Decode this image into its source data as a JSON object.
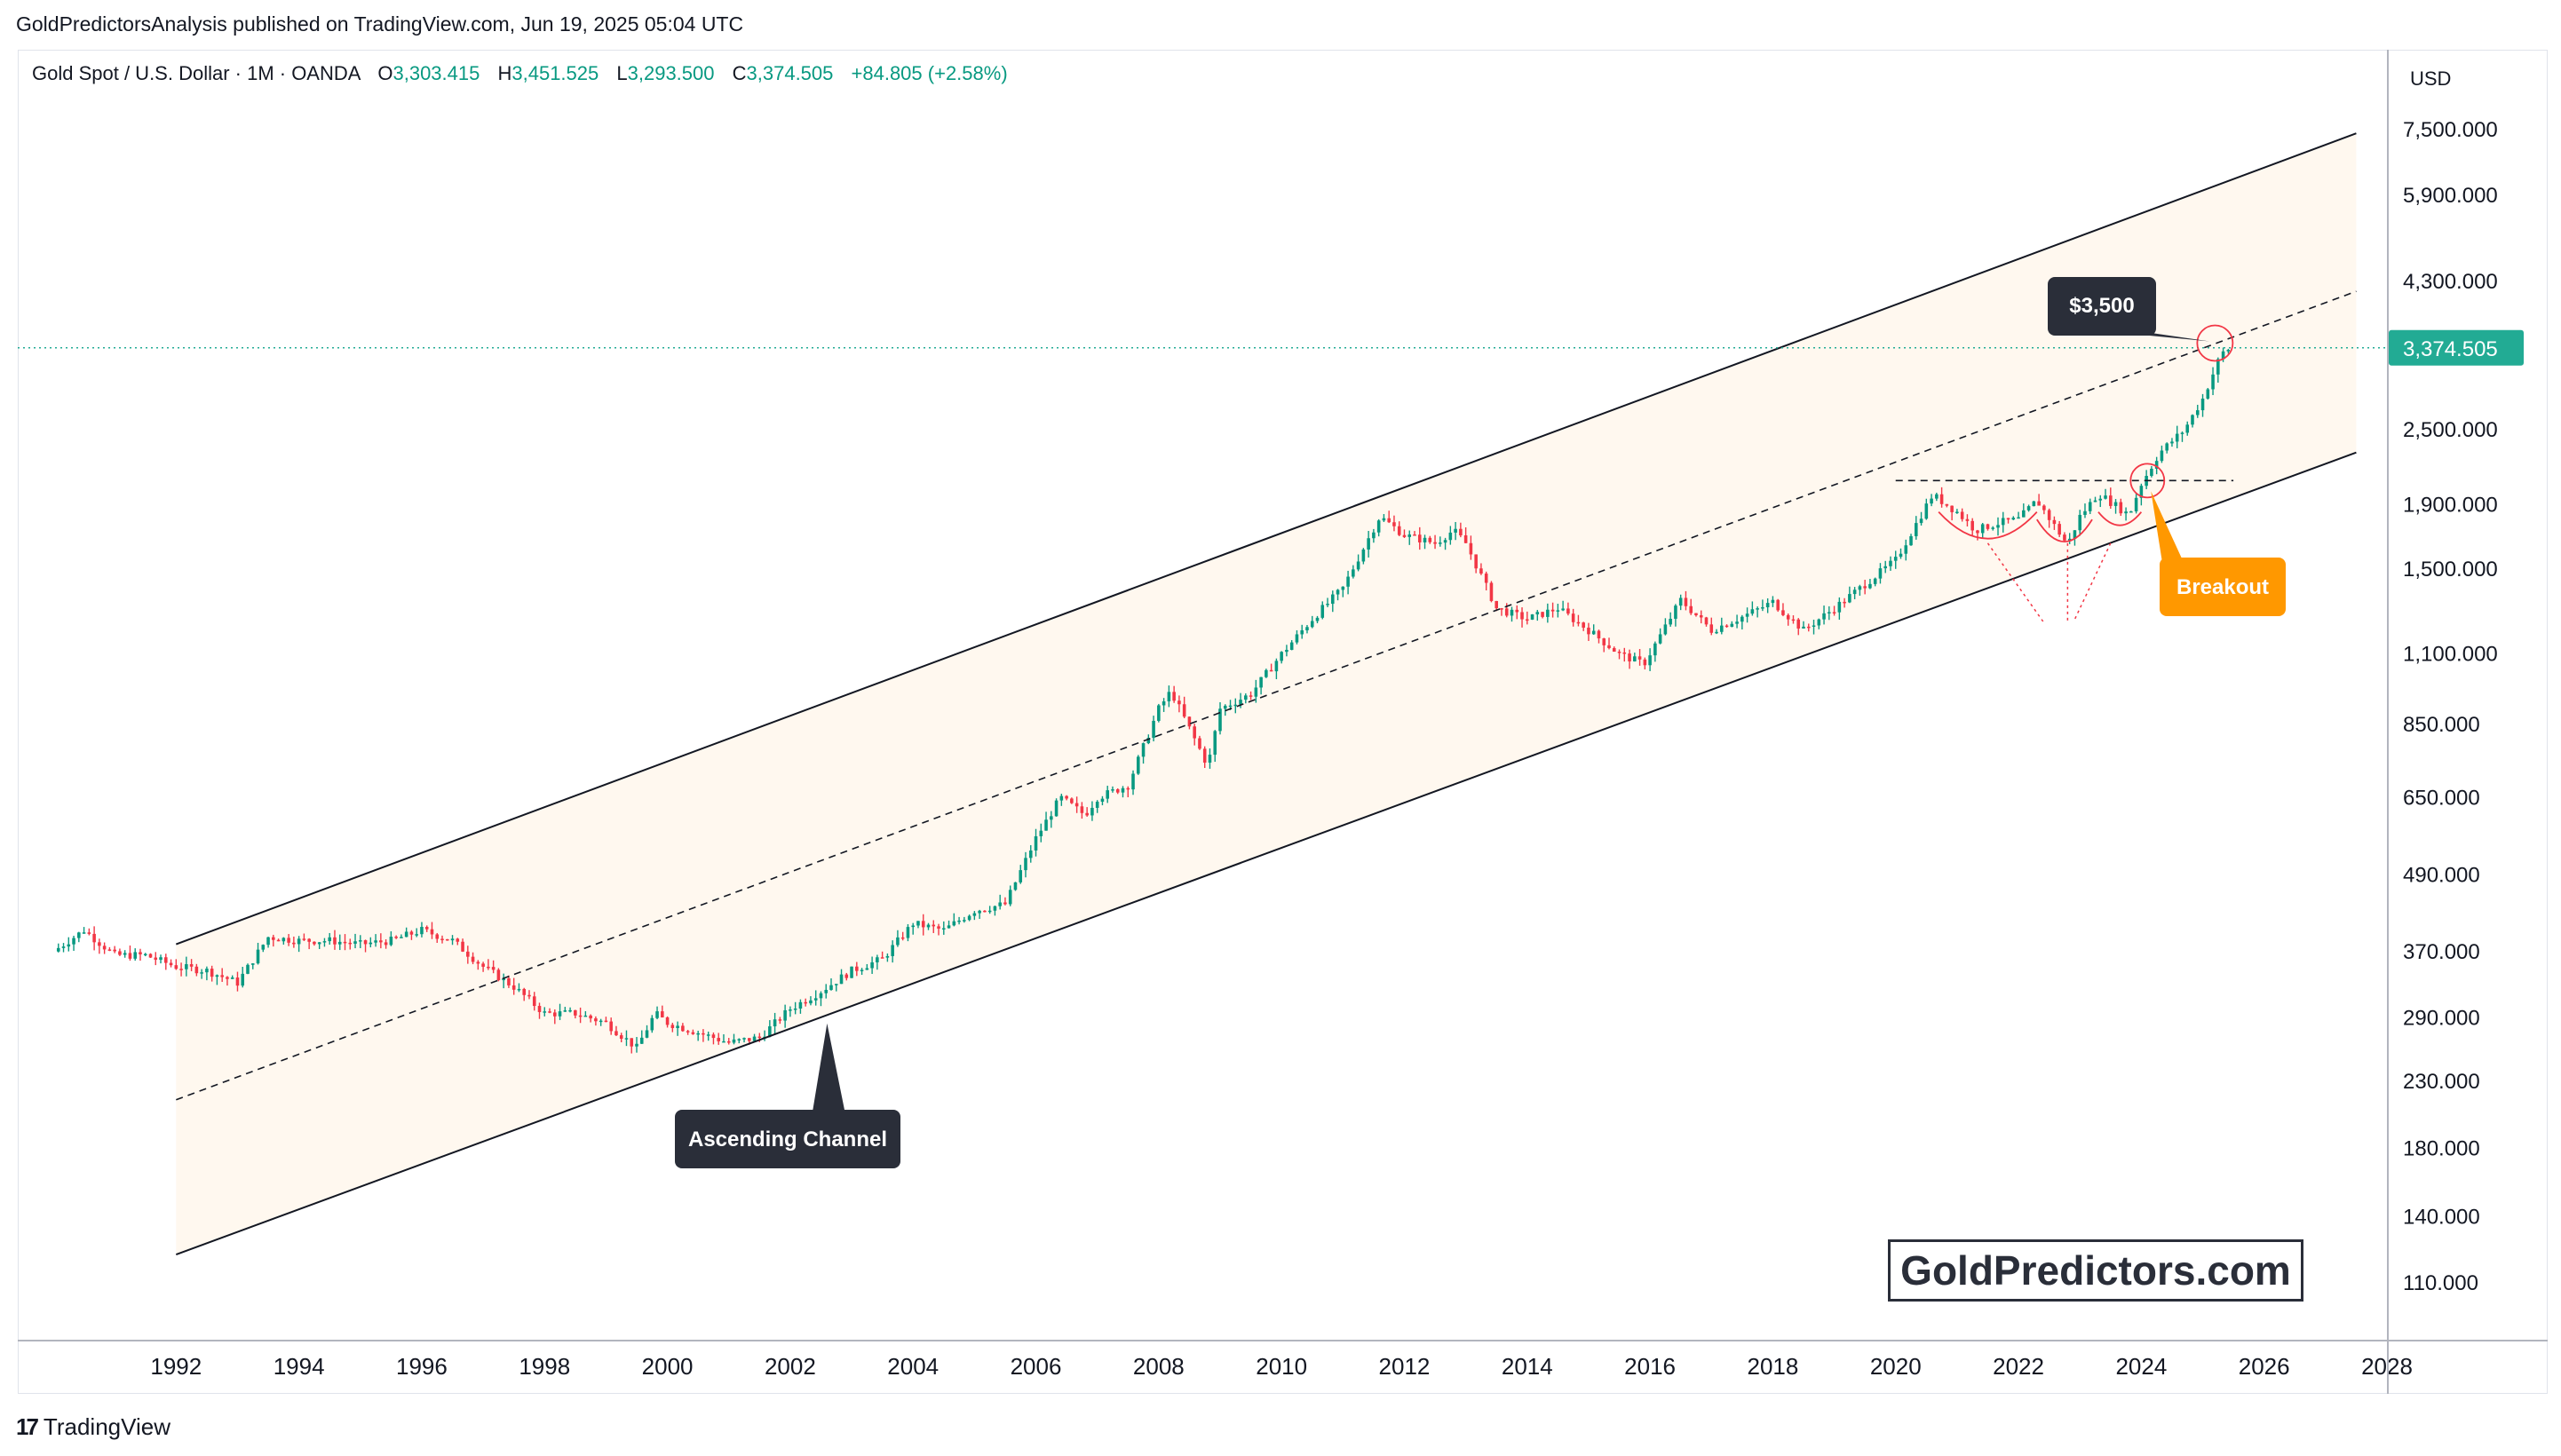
{
  "header": {
    "published": "GoldPredictorsAnalysis published on TradingView.com, Jun 19, 2025 05:04 UTC"
  },
  "symbol": {
    "name": "Gold Spot / U.S. Dollar · 1M · OANDA",
    "open_label": "O",
    "open": "3,303.415",
    "high_label": "H",
    "high": "3,451.525",
    "low_label": "L",
    "low": "3,293.500",
    "close_label": "C",
    "close": "3,374.505",
    "change": "+84.805 (+2.58%)"
  },
  "currency": "USD",
  "colors": {
    "up": "#089981",
    "down": "#f23645",
    "last_price": "#22ab94",
    "breakout_badge": "#ff9800",
    "dark_badge": "#2a2e39",
    "channel_fill": "#fff8ef"
  },
  "annotations": {
    "top_label": "$3,500",
    "breakout_label": "Breakout",
    "channel_label": "Ascending Channel"
  },
  "watermark": "GoldPredictors.com",
  "branding": {
    "logo_icon": "tradingview-logo-icon",
    "name": "TradingView"
  },
  "chart_data": {
    "type": "candlestick",
    "title": "Gold Spot / U.S. Dollar",
    "interval": "1M",
    "y_scale": "log",
    "ylim": [
      95,
      9000
    ],
    "xlim": [
      1990.0,
      2028.0
    ],
    "grid": false,
    "y_ticks": [
      7500,
      5900,
      4300,
      2500,
      1900,
      1500,
      1100,
      850,
      650,
      490,
      370,
      290,
      230,
      180,
      140,
      110
    ],
    "y_tick_labels": [
      "7,500.000",
      "5,900.000",
      "4,300.000",
      "2,500.000",
      "1,900.000",
      "1,500.000",
      "1,100.000",
      "850.000",
      "650.000",
      "490.000",
      "370.000",
      "290.000",
      "230.000",
      "180.000",
      "140.000",
      "110.000"
    ],
    "x_ticks": [
      1992,
      1994,
      1996,
      1998,
      2000,
      2002,
      2004,
      2006,
      2008,
      2010,
      2012,
      2014,
      2016,
      2018,
      2020,
      2022,
      2024,
      2026,
      2028
    ],
    "x_tick_labels": [
      "1992",
      "1994",
      "1996",
      "1998",
      "2000",
      "2002",
      "2004",
      "2006",
      "2008",
      "2010",
      "2012",
      "2014",
      "2016",
      "2018",
      "2020",
      "2022",
      "2024",
      "2026",
      "2028"
    ],
    "last_price": 3374.505,
    "last_price_label": "3,374.505",
    "price_path": [
      [
        1990.0,
        370
      ],
      [
        1990.5,
        400
      ],
      [
        1991.0,
        365
      ],
      [
        1991.5,
        365
      ],
      [
        1992.0,
        350
      ],
      [
        1992.5,
        345
      ],
      [
        1993.0,
        330
      ],
      [
        1993.5,
        390
      ],
      [
        1994.0,
        385
      ],
      [
        1994.5,
        385
      ],
      [
        1995.0,
        380
      ],
      [
        1995.5,
        385
      ],
      [
        1996.0,
        400
      ],
      [
        1996.5,
        385
      ],
      [
        1997.0,
        350
      ],
      [
        1997.5,
        325
      ],
      [
        1998.0,
        295
      ],
      [
        1998.5,
        295
      ],
      [
        1999.0,
        285
      ],
      [
        1999.5,
        260
      ],
      [
        1999.8,
        295
      ],
      [
        2000.0,
        285
      ],
      [
        2000.5,
        275
      ],
      [
        2001.0,
        265
      ],
      [
        2001.5,
        270
      ],
      [
        2002.0,
        300
      ],
      [
        2002.5,
        320
      ],
      [
        2003.0,
        345
      ],
      [
        2003.5,
        360
      ],
      [
        2004.0,
        410
      ],
      [
        2004.5,
        400
      ],
      [
        2005.0,
        430
      ],
      [
        2005.5,
        440
      ],
      [
        2006.0,
        560
      ],
      [
        2006.4,
        650
      ],
      [
        2006.8,
        610
      ],
      [
        2007.0,
        650
      ],
      [
        2007.5,
        680
      ],
      [
        2008.0,
        900
      ],
      [
        2008.2,
        960
      ],
      [
        2008.8,
        730
      ],
      [
        2009.0,
        900
      ],
      [
        2009.5,
        950
      ],
      [
        2010.0,
        1100
      ],
      [
        2010.5,
        1250
      ],
      [
        2011.0,
        1400
      ],
      [
        2011.6,
        1820
      ],
      [
        2012.0,
        1700
      ],
      [
        2012.5,
        1650
      ],
      [
        2012.8,
        1730
      ],
      [
        2013.0,
        1650
      ],
      [
        2013.5,
        1300
      ],
      [
        2014.0,
        1250
      ],
      [
        2014.5,
        1300
      ],
      [
        2015.0,
        1200
      ],
      [
        2015.5,
        1100
      ],
      [
        2015.9,
        1060
      ],
      [
        2016.5,
        1340
      ],
      [
        2017.0,
        1200
      ],
      [
        2017.5,
        1260
      ],
      [
        2018.0,
        1330
      ],
      [
        2018.5,
        1200
      ],
      [
        2019.0,
        1300
      ],
      [
        2019.5,
        1420
      ],
      [
        2020.0,
        1550
      ],
      [
        2020.6,
        1970
      ],
      [
        2021.0,
        1850
      ],
      [
        2021.3,
        1730
      ],
      [
        2021.7,
        1780
      ],
      [
        2022.0,
        1800
      ],
      [
        2022.3,
        1930
      ],
      [
        2022.8,
        1640
      ],
      [
        2023.0,
        1820
      ],
      [
        2023.3,
        1980
      ],
      [
        2023.8,
        1830
      ],
      [
        2024.0,
        2050
      ],
      [
        2024.3,
        2300
      ],
      [
        2024.7,
        2500
      ],
      [
        2025.0,
        2800
      ],
      [
        2025.3,
        3300
      ],
      [
        2025.45,
        3374.505
      ]
    ],
    "channel": {
      "upper": [
        [
          1992.0,
          380
        ],
        [
          2027.5,
          7400
        ]
      ],
      "lower": [
        [
          1992.0,
          122
        ],
        [
          2027.5,
          2300
        ]
      ],
      "mid": [
        [
          1992.0,
          215
        ],
        [
          2027.5,
          4150
        ]
      ]
    },
    "resistance_level": {
      "y": 2075,
      "x_start": 2020.0,
      "x_end": 2025.5
    },
    "annotations": [
      "$3,500",
      "Breakout",
      "Ascending Channel"
    ]
  }
}
